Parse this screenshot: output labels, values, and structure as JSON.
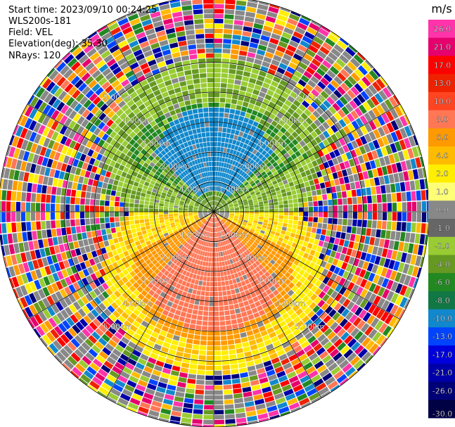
{
  "header": {
    "start_time": "Start time: 2023/09/10 00:24:25",
    "instrument": "WLS200s-181",
    "field": "Field: VEL",
    "elevation": "Elevation(deg): 35.30",
    "nrays": "NRays: 120"
  },
  "chart_data": {
    "type": "heatmap",
    "projection": "polar PPI",
    "field": "VEL",
    "nrays": 120,
    "range_rings_km": [
      1,
      2,
      3,
      4,
      5
    ],
    "ring_labels": [
      "1.00km",
      "2.00km",
      "3.00km",
      "4.00km",
      "5.00km"
    ],
    "colorbar": {
      "unit": "m/s",
      "ticks": [
        "26.0",
        "21.0",
        "17.0",
        "13.0",
        "10.0",
        "8.0",
        "6.0",
        "4.0",
        "2.0",
        "1.0",
        "0.0",
        "-1.0",
        "-2.0",
        "-4.0",
        "-6.0",
        "-8.0",
        "-10.0",
        "-13.0",
        "-17.0",
        "-21.0",
        "-26.0",
        "-30.0"
      ],
      "colors": [
        "#ff33aa",
        "#e6006e",
        "#ff0000",
        "#ee2200",
        "#ff4422",
        "#ff7755",
        "#ff9900",
        "#ffbb00",
        "#ffee00",
        "#ffff77",
        "#888888",
        "#666666",
        "#99cc33",
        "#669922",
        "#228822",
        "#117744",
        "#1188cc",
        "#0044ff",
        "#0000dd",
        "#0000aa",
        "#000077",
        "#000044"
      ]
    },
    "pattern": {
      "near_north": "approach (-6 to -10 m/s)",
      "near_south": "recede (+6 to +10 m/s)",
      "far_field": "noise"
    }
  }
}
